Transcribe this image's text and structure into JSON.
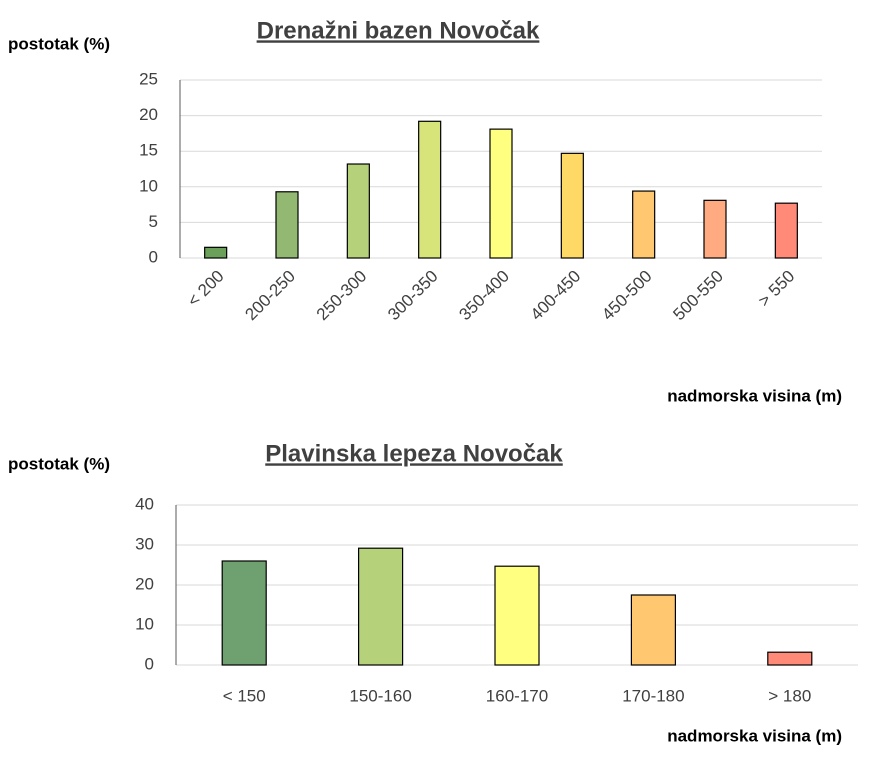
{
  "chart_data": [
    {
      "type": "bar",
      "title": "Drenažni bazen Novočak",
      "y_label": "postotak (%)",
      "x_label": "nadmorska visina (m)",
      "categories": [
        "< 200",
        "200-250",
        "250-300",
        "300-350",
        "350-400",
        "400-450",
        "450-500",
        "500-550",
        "> 550"
      ],
      "values": [
        1.5,
        9.3,
        13.2,
        19.2,
        18.1,
        14.7,
        9.4,
        8.1,
        7.7
      ],
      "colors": [
        "#6aa05a",
        "#93b872",
        "#b5d27a",
        "#d7e47a",
        "#ffff80",
        "#ffd966",
        "#ffc870",
        "#ffaa80",
        "#ff8a78"
      ],
      "ylim": [
        0,
        25
      ],
      "yticks": [
        0,
        5,
        10,
        15,
        20,
        25
      ],
      "grid": true
    },
    {
      "type": "bar",
      "title": "Plavinska lepeza Novočak",
      "y_label": "postotak (%)",
      "x_label": "nadmorska visina (m)",
      "categories": [
        "< 150",
        "150-160",
        "160-170",
        "170-180",
        "> 180"
      ],
      "values": [
        26,
        29.2,
        24.7,
        17.5,
        3.2
      ],
      "colors": [
        "#6ea070",
        "#b5d27a",
        "#ffff80",
        "#ffc870",
        "#ff8a78"
      ],
      "ylim": [
        0,
        40
      ],
      "yticks": [
        0,
        10,
        20,
        30,
        40
      ],
      "grid": true
    }
  ]
}
